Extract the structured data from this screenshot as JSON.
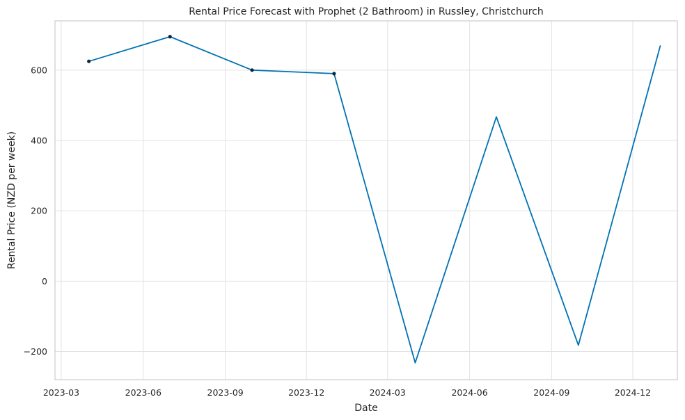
{
  "chart_data": {
    "type": "line",
    "title": "Rental Price Forecast with Prophet (2 Bathroom) in Russley, Christchurch",
    "xlabel": "Date",
    "ylabel": "Rental Price (NZD per week)",
    "x_ticks": [
      "2023-03",
      "2023-06",
      "2023-09",
      "2023-12",
      "2024-03",
      "2024-06",
      "2024-09",
      "2024-12"
    ],
    "y_ticks": [
      -200,
      0,
      200,
      400,
      600
    ],
    "ylim": [
      -280,
      740
    ],
    "xlim": [
      "2023-02-22",
      "2025-01-20"
    ],
    "grid": true,
    "colors": {
      "line": "#0072b2",
      "points": "#0b2a3a"
    },
    "series": [
      {
        "type": "line",
        "x": [
          "2023-04-01",
          "2023-07-01",
          "2023-10-01",
          "2024-01-01",
          "2024-04-01",
          "2024-07-01",
          "2024-10-01",
          "2025-01-01"
        ],
        "values": [
          625,
          695,
          600,
          590,
          -232,
          467,
          -182,
          670
        ]
      },
      {
        "type": "scatter",
        "x": [
          "2023-04-01",
          "2023-07-01",
          "2023-10-01",
          "2024-01-01"
        ],
        "values": [
          625,
          695,
          600,
          590
        ]
      }
    ]
  }
}
